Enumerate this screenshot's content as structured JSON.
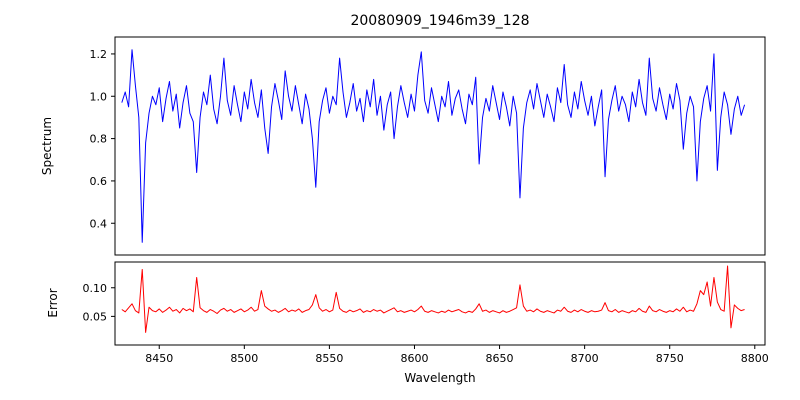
{
  "chart_data": {
    "type": "line",
    "title": "20080909_1946m39_128",
    "xlabel": "Wavelength",
    "grid": false,
    "legend": "none",
    "x_start": 8428,
    "x_step": 2,
    "xlim": [
      8424,
      8806
    ],
    "x_ticks": [
      8450,
      8500,
      8550,
      8600,
      8650,
      8700,
      8750,
      8800
    ],
    "x_tick_labels": [
      "8450",
      "8500",
      "8550",
      "8600",
      "8650",
      "8700",
      "8750",
      "8800"
    ],
    "panels": [
      {
        "name": "spectrum",
        "ylabel": "Spectrum",
        "color": "#0000ff",
        "ylim": [
          0.25,
          1.28
        ],
        "y_ticks": [
          0.4,
          0.6,
          0.8,
          1.0,
          1.2
        ],
        "y_tick_labels": [
          "0.4",
          "0.6",
          "0.8",
          "1.0",
          "1.2"
        ],
        "values": [
          0.97,
          1.02,
          0.95,
          1.22,
          1.05,
          0.9,
          0.31,
          0.78,
          0.92,
          1.0,
          0.96,
          1.04,
          0.88,
          0.99,
          1.07,
          0.93,
          1.01,
          0.85,
          0.97,
          1.05,
          0.92,
          0.88,
          0.64,
          0.9,
          1.02,
          0.96,
          1.1,
          0.94,
          0.87,
          1.0,
          1.18,
          0.98,
          0.91,
          1.05,
          0.96,
          0.88,
          1.02,
          0.94,
          1.08,
          0.97,
          0.9,
          1.03,
          0.85,
          0.73,
          0.95,
          1.06,
          0.98,
          0.89,
          1.12,
          1.0,
          0.93,
          1.05,
          0.96,
          0.87,
          1.01,
          0.94,
          0.8,
          0.57,
          0.88,
          0.98,
          1.04,
          0.92,
          1.0,
          0.96,
          1.18,
          1.02,
          0.9,
          0.97,
          1.06,
          0.93,
          0.99,
          0.88,
          1.03,
          0.95,
          1.08,
          0.91,
          1.0,
          0.84,
          0.96,
          1.02,
          0.8,
          0.95,
          1.05,
          0.97,
          0.9,
          1.01,
          0.93,
          1.1,
          1.21,
          0.98,
          0.92,
          1.04,
          0.96,
          0.88,
          1.0,
          0.95,
          1.07,
          0.91,
          0.99,
          1.03,
          0.94,
          0.87,
          1.01,
          0.96,
          1.09,
          0.68,
          0.9,
          0.99,
          0.93,
          1.05,
          0.97,
          0.89,
          1.02,
          0.95,
          0.86,
          1.0,
          0.92,
          0.52,
          0.85,
          0.97,
          1.03,
          0.94,
          1.06,
          0.98,
          0.9,
          1.01,
          0.95,
          0.88,
          1.04,
          0.97,
          1.15,
          0.96,
          0.9,
          1.02,
          0.94,
          1.07,
          0.98,
          0.91,
          1.0,
          0.86,
          0.95,
          1.03,
          0.62,
          0.89,
          0.98,
          1.05,
          0.93,
          1.0,
          0.96,
          0.88,
          1.02,
          0.95,
          1.08,
          0.97,
          0.91,
          1.18,
          0.99,
          0.93,
          1.04,
          0.96,
          0.89,
          1.01,
          0.94,
          1.06,
          0.98,
          0.75,
          0.92,
          1.0,
          0.95,
          0.6,
          0.88,
          0.99,
          1.05,
          0.93,
          1.2,
          0.65,
          0.9,
          1.02,
          0.96,
          0.82,
          0.94,
          1.0,
          0.91,
          0.96
        ]
      },
      {
        "name": "error",
        "ylabel": "Error",
        "color": "#ff0000",
        "ylim": [
          0.0,
          0.145
        ],
        "y_ticks": [
          0.05,
          0.1
        ],
        "y_tick_labels": [
          "0.05",
          "0.10"
        ],
        "values": [
          0.062,
          0.058,
          0.065,
          0.072,
          0.06,
          0.056,
          0.132,
          0.022,
          0.066,
          0.06,
          0.058,
          0.063,
          0.057,
          0.061,
          0.066,
          0.059,
          0.062,
          0.056,
          0.064,
          0.06,
          0.063,
          0.058,
          0.118,
          0.065,
          0.06,
          0.057,
          0.062,
          0.059,
          0.055,
          0.061,
          0.064,
          0.059,
          0.062,
          0.057,
          0.06,
          0.063,
          0.058,
          0.061,
          0.066,
          0.059,
          0.062,
          0.095,
          0.068,
          0.063,
          0.059,
          0.061,
          0.057,
          0.06,
          0.064,
          0.058,
          0.061,
          0.059,
          0.063,
          0.057,
          0.06,
          0.062,
          0.07,
          0.088,
          0.065,
          0.059,
          0.062,
          0.058,
          0.061,
          0.092,
          0.064,
          0.059,
          0.057,
          0.061,
          0.058,
          0.06,
          0.063,
          0.057,
          0.06,
          0.058,
          0.062,
          0.059,
          0.061,
          0.056,
          0.059,
          0.062,
          0.065,
          0.058,
          0.06,
          0.057,
          0.059,
          0.061,
          0.058,
          0.062,
          0.068,
          0.059,
          0.057,
          0.06,
          0.058,
          0.056,
          0.059,
          0.057,
          0.061,
          0.058,
          0.06,
          0.062,
          0.058,
          0.056,
          0.059,
          0.057,
          0.063,
          0.072,
          0.059,
          0.061,
          0.057,
          0.06,
          0.058,
          0.056,
          0.06,
          0.057,
          0.059,
          0.062,
          0.065,
          0.105,
          0.068,
          0.059,
          0.061,
          0.058,
          0.063,
          0.059,
          0.057,
          0.06,
          0.058,
          0.056,
          0.061,
          0.059,
          0.066,
          0.059,
          0.057,
          0.061,
          0.058,
          0.062,
          0.059,
          0.057,
          0.06,
          0.058,
          0.059,
          0.061,
          0.074,
          0.06,
          0.058,
          0.062,
          0.057,
          0.06,
          0.058,
          0.056,
          0.06,
          0.058,
          0.064,
          0.059,
          0.057,
          0.068,
          0.06,
          0.058,
          0.062,
          0.059,
          0.057,
          0.06,
          0.058,
          0.063,
          0.059,
          0.066,
          0.058,
          0.061,
          0.059,
          0.072,
          0.095,
          0.088,
          0.11,
          0.068,
          0.118,
          0.075,
          0.062,
          0.059,
          0.138,
          0.03,
          0.07,
          0.064,
          0.06,
          0.062
        ]
      }
    ]
  }
}
